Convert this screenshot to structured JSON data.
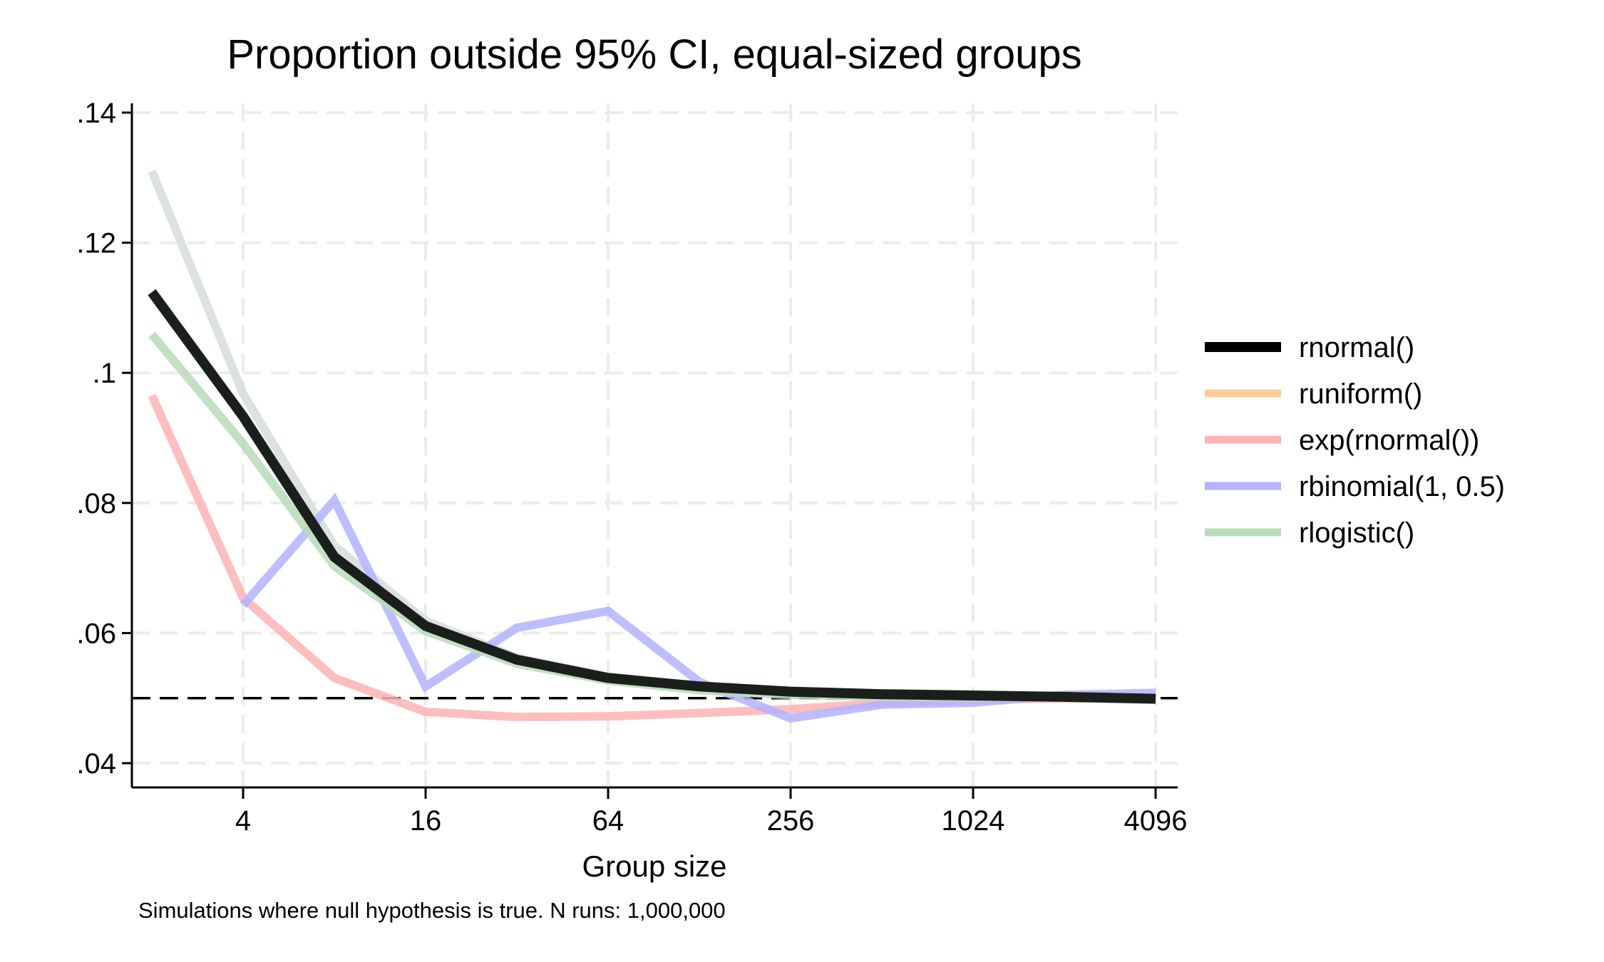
{
  "chart_data": {
    "type": "line",
    "title": "Proportion outside 95% CI, equal-sized groups",
    "xlabel": "Group size",
    "ylabel": "",
    "note": "Simulations where null hypothesis is true. N runs: 1,000,000",
    "x_scale": "log2",
    "x": [
      2,
      4,
      8,
      16,
      32,
      64,
      128,
      256,
      512,
      1024,
      2048,
      4096
    ],
    "x_ticks": [
      4,
      16,
      64,
      256,
      1024,
      4096
    ],
    "x_tick_labels": [
      "4",
      "16",
      "64",
      "256",
      "1024",
      "4096"
    ],
    "y_ticks": [
      0.04,
      0.06,
      0.08,
      0.1,
      0.12,
      0.14
    ],
    "y_tick_labels": [
      ".04",
      ".06",
      ".08",
      ".1",
      ".12",
      ".14"
    ],
    "xlim": [
      2,
      4096
    ],
    "ylim": [
      0.04,
      0.14
    ],
    "grid": true,
    "reference_line": 0.05,
    "legend_position": "right",
    "series": [
      {
        "name": "runiform()",
        "color": "#ffcc99",
        "plot_color": "#d6ddd9",
        "values": [
          0.131,
          0.0968,
          0.0734,
          0.0619,
          0.0562,
          0.0533,
          0.0518,
          0.0508,
          0.0503,
          0.0502,
          0.0501,
          0.05
        ]
      },
      {
        "name": "exp(rnormal())",
        "color": "#ffb3b3",
        "values": [
          0.0965,
          0.0654,
          0.0531,
          0.0479,
          0.0471,
          0.0472,
          0.0477,
          0.0483,
          0.0492,
          0.0497,
          0.05,
          0.0499
        ]
      },
      {
        "name": "rbinomial(1, 0.5)",
        "color": "#b3b3ff",
        "values": [
          null,
          0.0643,
          0.0804,
          0.0518,
          0.0608,
          0.0634,
          0.0525,
          0.0469,
          0.049,
          0.0493,
          0.0505,
          0.0508
        ]
      },
      {
        "name": "rlogistic()",
        "color": "#b8dbb8",
        "values": [
          0.1059,
          0.0891,
          0.0703,
          0.0603,
          0.0553,
          0.0527,
          0.0512,
          0.0505,
          0.0502,
          0.0501,
          0.0501,
          0.05
        ]
      },
      {
        "name": "rnormal()",
        "color": "#000000",
        "plot_color": "#1b1f1c",
        "values": [
          0.1124,
          0.0933,
          0.0717,
          0.0611,
          0.0559,
          0.0531,
          0.0518,
          0.051,
          0.0506,
          0.0504,
          0.0502,
          0.0499
        ]
      }
    ],
    "legend_order": [
      "rnormal()",
      "runiform()",
      "exp(rnormal())",
      "rbinomial(1, 0.5)",
      "rlogistic()"
    ]
  }
}
